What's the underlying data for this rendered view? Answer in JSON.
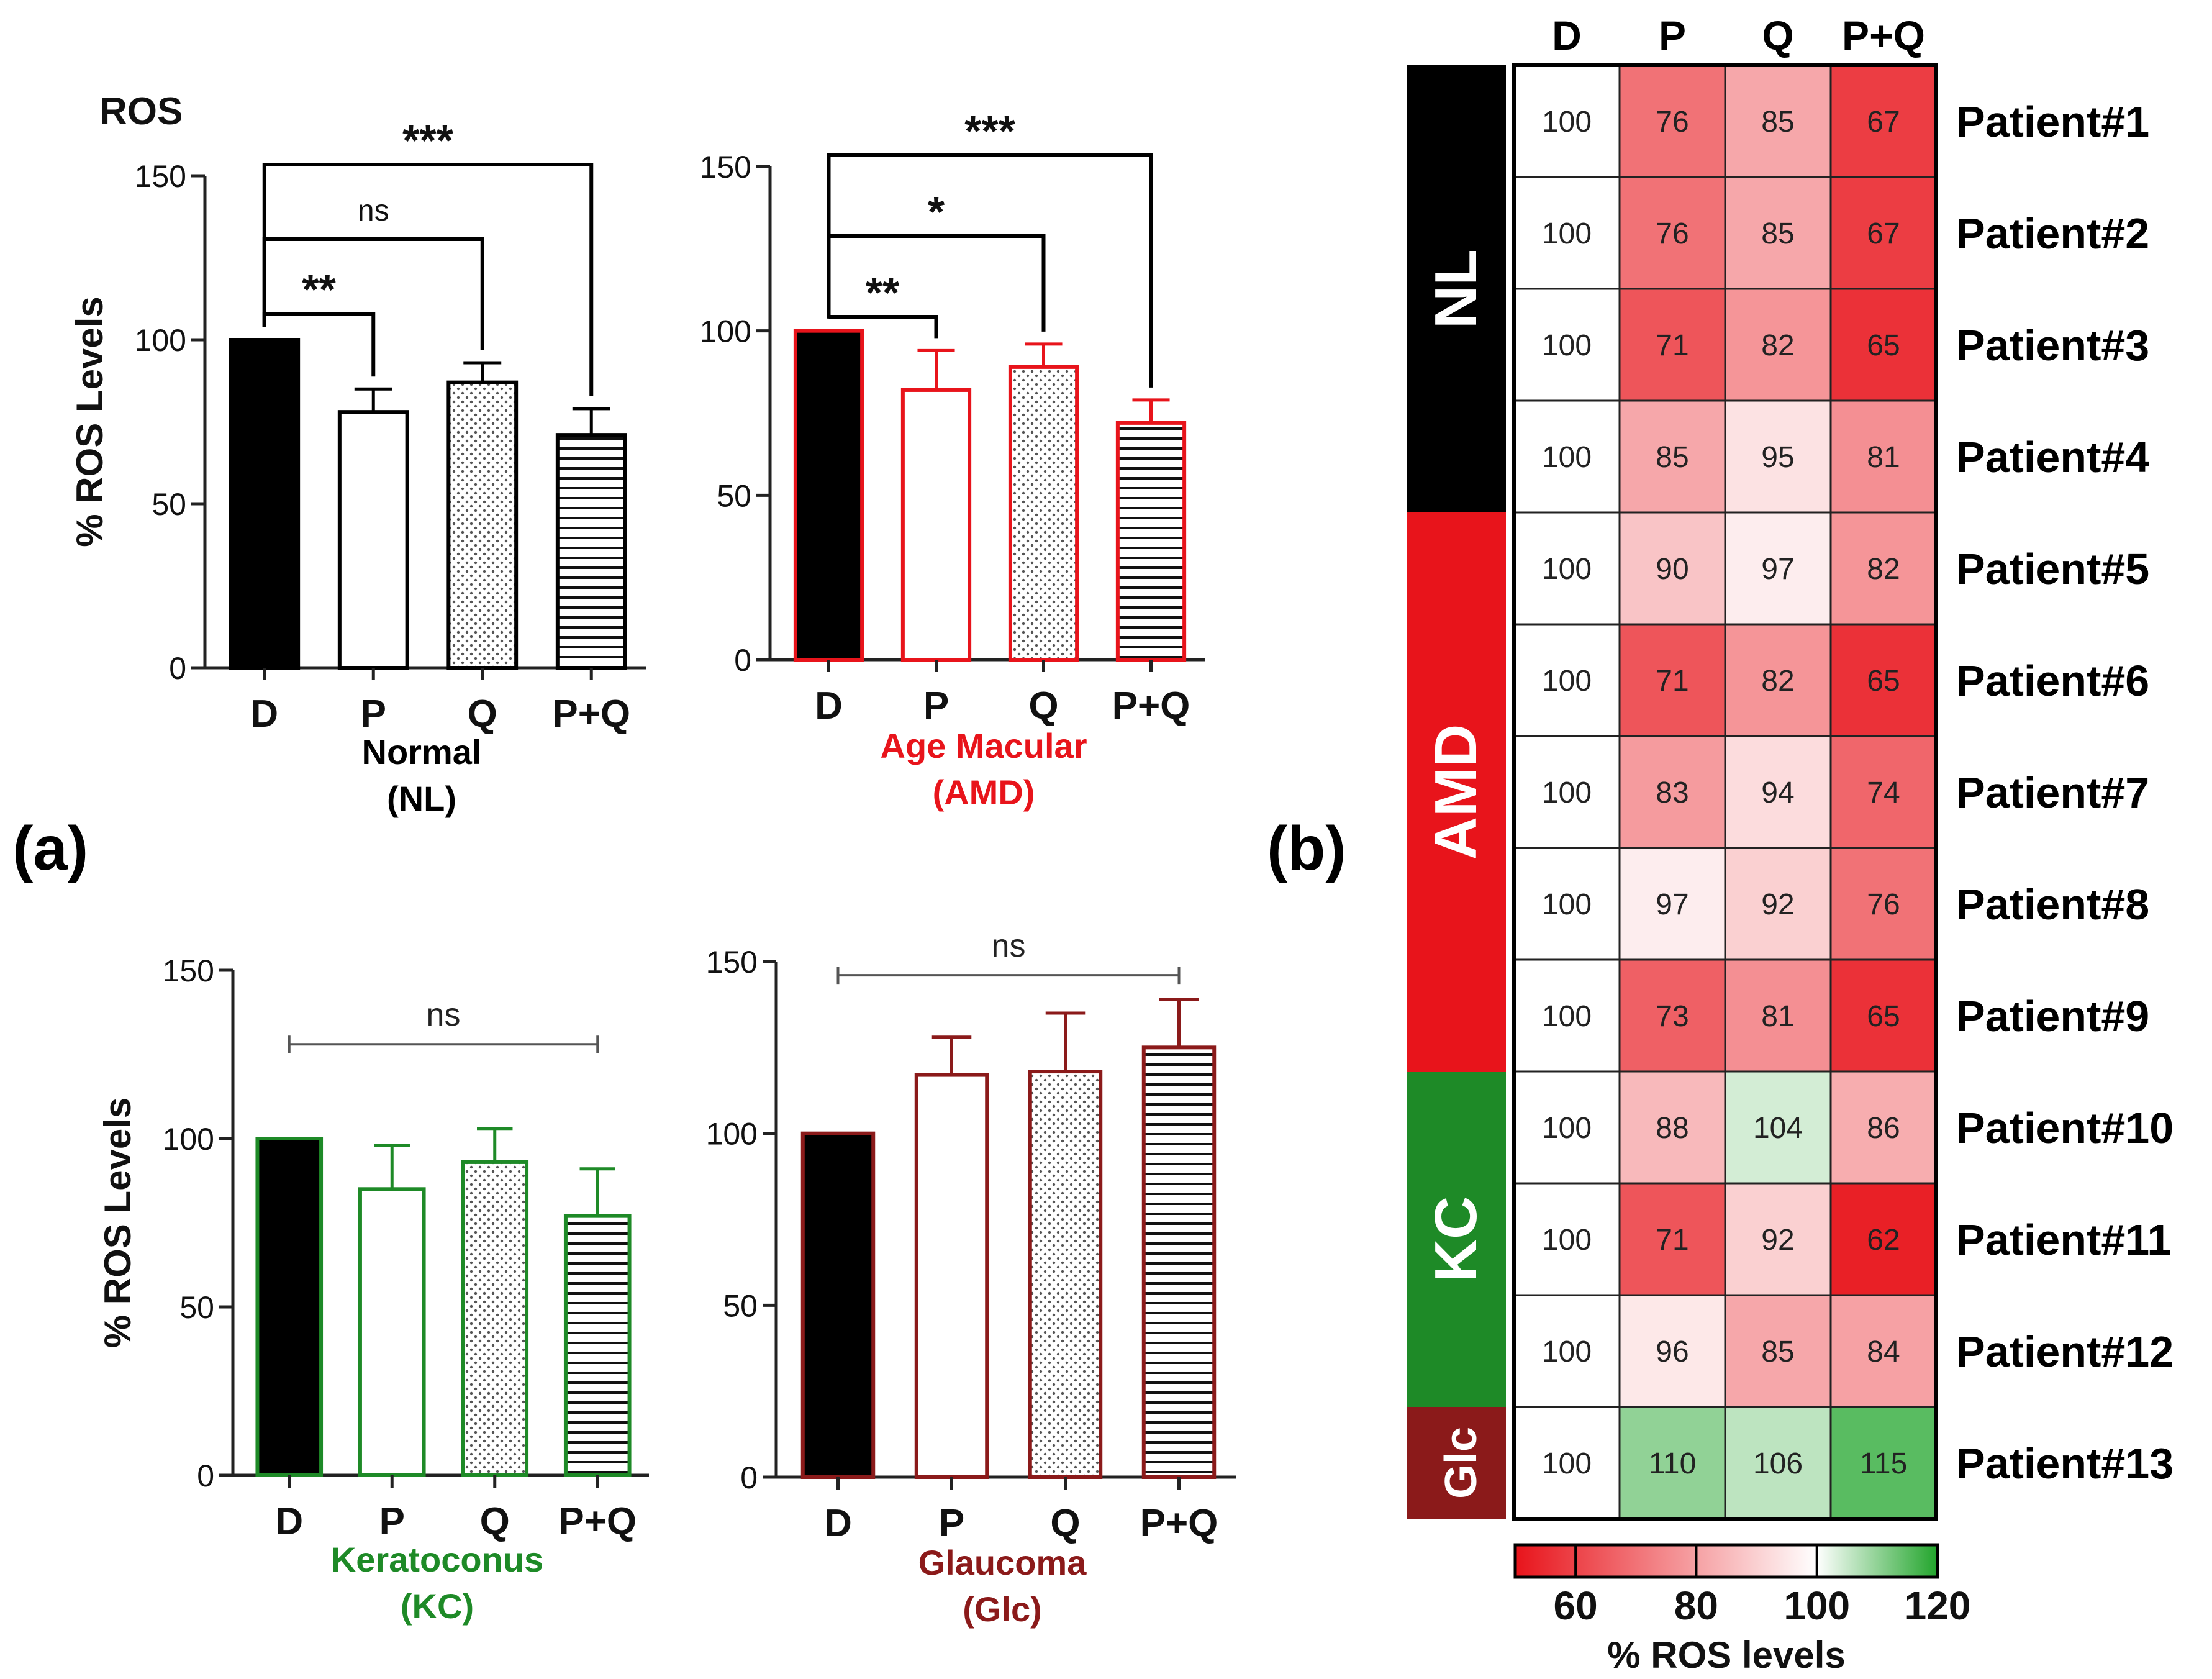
{
  "panel_labels": {
    "a": "(a)",
    "b": "(b)"
  },
  "colors": {
    "nl": "#000000",
    "amd": "#e8141b",
    "kc": "#1e8a27",
    "glc": "#8b1a1a",
    "black": "#000000",
    "axis": "#222222",
    "bracket": "#555555"
  },
  "chart_data": [
    {
      "id": "nl",
      "type": "bar",
      "corner_label": "ROS",
      "ylabel": "% ROS Levels",
      "title_line1": "Normal",
      "title_line2": "(NL)",
      "categories": [
        "D",
        "P",
        "Q",
        "P+Q"
      ],
      "values": [
        100,
        78,
        87,
        71
      ],
      "errors": [
        0,
        7,
        6,
        8
      ],
      "patterns": [
        "solid",
        "open",
        "dots",
        "hstripes"
      ],
      "ylim": [
        0,
        150
      ],
      "yticks": [
        0,
        50,
        100,
        150
      ],
      "significance": [
        {
          "from": 0,
          "to": 1,
          "label": "**"
        },
        {
          "from": 0,
          "to": 2,
          "label": "ns"
        },
        {
          "from": 0,
          "to": 3,
          "label": "***"
        }
      ]
    },
    {
      "id": "amd",
      "type": "bar",
      "ylabel": "",
      "title_line1": "Age Macular",
      "title_line2": "(AMD)",
      "categories": [
        "D",
        "P",
        "Q",
        "P+Q"
      ],
      "values": [
        100,
        82,
        89,
        72
      ],
      "errors": [
        0,
        12,
        7,
        7
      ],
      "patterns": [
        "solid",
        "open",
        "dots",
        "hstripes"
      ],
      "ylim": [
        0,
        150
      ],
      "yticks": [
        0,
        50,
        100,
        150
      ],
      "significance": [
        {
          "from": 0,
          "to": 1,
          "label": "**"
        },
        {
          "from": 0,
          "to": 2,
          "label": "*"
        },
        {
          "from": 0,
          "to": 3,
          "label": "***"
        }
      ]
    },
    {
      "id": "kc",
      "type": "bar",
      "ylabel": "% ROS Levels",
      "title_line1": "Keratoconus",
      "title_line2": "(KC)",
      "categories": [
        "D",
        "P",
        "Q",
        "P+Q"
      ],
      "values": [
        100,
        85,
        93,
        77
      ],
      "errors": [
        0,
        13,
        10,
        14
      ],
      "patterns": [
        "solid",
        "open",
        "dots",
        "hstripes"
      ],
      "ylim": [
        0,
        150
      ],
      "yticks": [
        0,
        50,
        100,
        150
      ],
      "ns_bar": {
        "from": 0,
        "to": 3,
        "label": "ns",
        "y": 128
      }
    },
    {
      "id": "glc",
      "type": "bar",
      "ylabel": "",
      "title_line1": "Glaucoma",
      "title_line2": "(Glc)",
      "categories": [
        "D",
        "P",
        "Q",
        "P+Q"
      ],
      "values": [
        100,
        117,
        118,
        125
      ],
      "errors": [
        0,
        11,
        17,
        14
      ],
      "patterns": [
        "solid",
        "open",
        "dots",
        "hstripes"
      ],
      "ylim": [
        0,
        150
      ],
      "yticks": [
        0,
        50,
        100,
        150
      ],
      "ns_bar": {
        "from": 0,
        "to": 3,
        "label": "ns",
        "y": 146
      }
    },
    {
      "id": "heatmap",
      "type": "heatmap",
      "columns": [
        "D",
        "P",
        "Q",
        "P+Q"
      ],
      "rows": [
        "Patient#1",
        "Patient#2",
        "Patient#3",
        "Patient#4",
        "Patient#5",
        "Patient#6",
        "Patient#7",
        "Patient#8",
        "Patient#9",
        "Patient#10",
        "Patient#11",
        "Patient#12",
        "Patient#13"
      ],
      "values": [
        [
          100,
          76,
          85,
          67
        ],
        [
          100,
          76,
          85,
          67
        ],
        [
          100,
          71,
          82,
          65
        ],
        [
          100,
          85,
          95,
          81
        ],
        [
          100,
          90,
          97,
          82
        ],
        [
          100,
          71,
          82,
          65
        ],
        [
          100,
          83,
          94,
          74
        ],
        [
          100,
          97,
          92,
          76
        ],
        [
          100,
          73,
          81,
          65
        ],
        [
          100,
          88,
          104,
          86
        ],
        [
          100,
          71,
          92,
          62
        ],
        [
          100,
          96,
          85,
          84
        ],
        [
          100,
          110,
          106,
          115
        ]
      ],
      "groups": [
        {
          "label": "NL",
          "rows": 4,
          "color": "#000000"
        },
        {
          "label": "AMD",
          "rows": 5,
          "color": "#e8141b"
        },
        {
          "label": "KC",
          "rows": 3,
          "color": "#1e8a27"
        },
        {
          "label": "Glc",
          "rows": 1,
          "color": "#8b1a1a"
        }
      ],
      "colorbar": {
        "min": 50,
        "max": 120,
        "ticks": [
          60,
          80,
          100,
          120
        ],
        "label": "% ROS levels",
        "low_color": "#e8141b",
        "mid_color": "#ffffff",
        "high_color": "#22a52c"
      }
    }
  ]
}
